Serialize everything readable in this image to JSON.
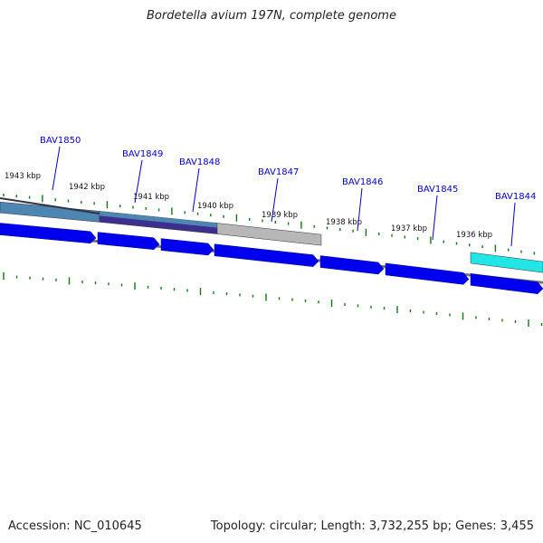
{
  "title": "Bordetella avium 197N, complete genome",
  "footer": {
    "accession": "Accession: NC_010645",
    "topology": "Topology: circular; Length: 3,732,255 bp; Genes: 3,455"
  },
  "colors": {
    "gene_arrow": "#0000ee",
    "gene_label": "#0000cc",
    "tick": "#117711",
    "backbone": "#777777",
    "band_blue": "#4e86b3",
    "band_purple": "#3c2f8f",
    "band_grey": "#b7b7b7",
    "band_cyan": "#22e6e6"
  },
  "ruler_labels": [
    "1943 kbp",
    "1942 kbp",
    "1941 kbp",
    "1940 kbp",
    "1939 kbp",
    "1938 kbp",
    "1937 kbp",
    "1936 kbp"
  ],
  "genes": [
    "BAV1850",
    "BAV1849",
    "BAV1848",
    "BAV1847",
    "BAV1846",
    "BAV1845",
    "BAV1844"
  ],
  "bands": [
    {
      "color": "band_blue"
    },
    {
      "color": "band_purple"
    },
    {
      "color": "band_grey"
    },
    {
      "color": "band_cyan"
    }
  ]
}
